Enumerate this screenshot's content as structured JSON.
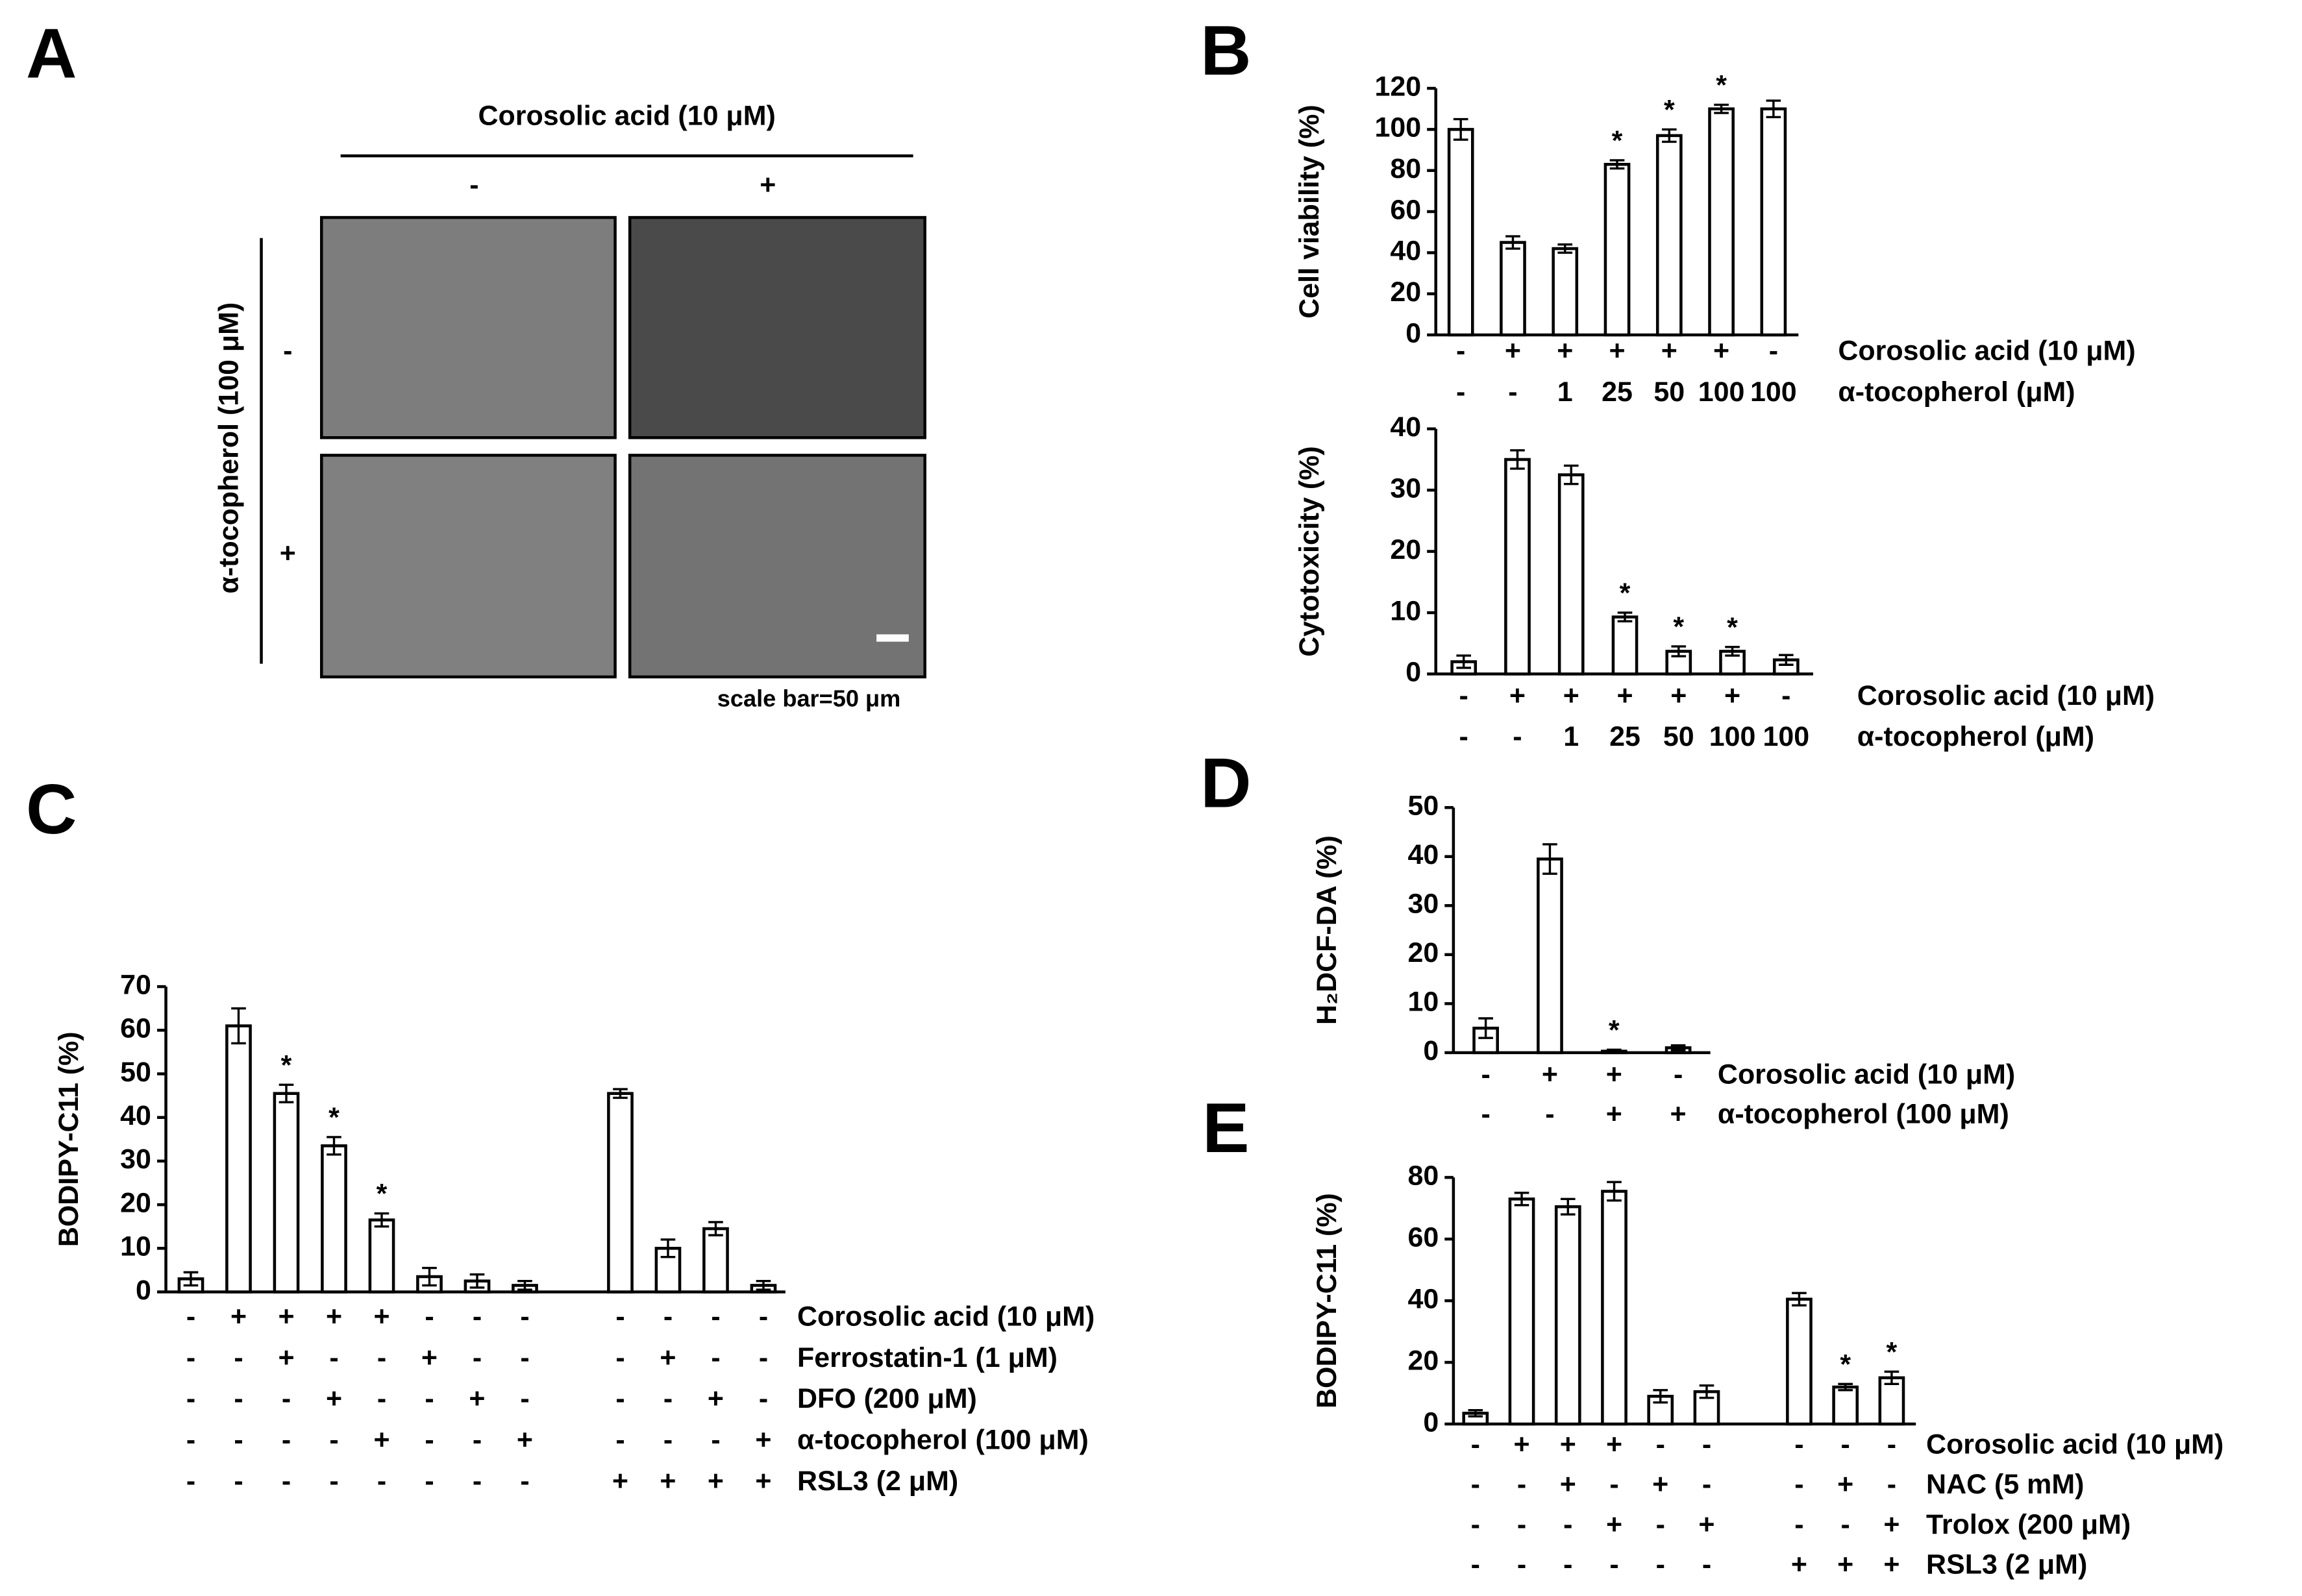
{
  "panel_labels": [
    "A",
    "B",
    "C",
    "D",
    "E"
  ],
  "panel_a": {
    "column_header": "Corosolic acid (10 μM)",
    "column_levels": [
      "-",
      "+"
    ],
    "row_header": "α-tocopherol (100 μM)",
    "row_levels": [
      "-",
      "+"
    ],
    "scale_bar": "scale bar=50 μm"
  },
  "chart_data": [
    {
      "type": "bar",
      "y_label": "Cell viability (%)",
      "ylim": [
        0,
        120
      ],
      "yticks": [
        0,
        20,
        40,
        60,
        80,
        100,
        120
      ],
      "values": [
        100,
        45,
        42,
        83,
        97,
        110,
        110
      ],
      "errors": [
        5,
        3,
        2,
        2,
        3,
        2,
        4
      ],
      "annotations": [
        null,
        null,
        null,
        "*",
        "*",
        "*",
        null
      ],
      "conditions": [
        {
          "label": "Corosolic acid (10 μM)",
          "values": [
            "-",
            "+",
            "+",
            "+",
            "+",
            "+",
            "-"
          ]
        },
        {
          "label": "α-tocopherol (μM)",
          "values": [
            "-",
            "-",
            "1",
            "25",
            "50",
            "100",
            "100"
          ]
        }
      ]
    },
    {
      "type": "bar",
      "y_label": "Cytotoxicity (%)",
      "ylim": [
        0,
        40
      ],
      "yticks": [
        0,
        10,
        20,
        30,
        40
      ],
      "values": [
        2,
        35,
        32.5,
        9.3,
        3.7,
        3.7,
        2.3
      ],
      "errors": [
        1,
        1.5,
        1.5,
        0.7,
        0.8,
        0.7,
        0.8
      ],
      "annotations": [
        null,
        null,
        null,
        "*",
        "*",
        "*",
        null
      ],
      "conditions": [
        {
          "label": "Corosolic acid (10 μM)",
          "values": [
            "-",
            "+",
            "+",
            "+",
            "+",
            "+",
            "-"
          ]
        },
        {
          "label": "α-tocopherol (μM)",
          "values": [
            "-",
            "-",
            "1",
            "25",
            "50",
            "100",
            "100"
          ]
        }
      ]
    },
    {
      "type": "bar",
      "y_label": "BODIPY-C11 (%)",
      "ylim": [
        0,
        70
      ],
      "yticks": [
        0,
        10,
        20,
        30,
        40,
        50,
        60,
        70
      ],
      "values": [
        3,
        61,
        45.5,
        33.5,
        16.5,
        3.5,
        2.5,
        1.5,
        null,
        45.5,
        10,
        14.5,
        1.5
      ],
      "errors": [
        1.5,
        4,
        2,
        2,
        1.5,
        2,
        1.5,
        1,
        null,
        1,
        2,
        1.5,
        1
      ],
      "annotations": [
        null,
        null,
        "*",
        "*",
        "*",
        null,
        null,
        null,
        null,
        null,
        null,
        null,
        null
      ],
      "conditions": [
        {
          "label": "Corosolic acid (10 μM)",
          "values": [
            "-",
            "+",
            "+",
            "+",
            "+",
            "-",
            "-",
            "-",
            null,
            "-",
            "-",
            "-",
            "-"
          ]
        },
        {
          "label": "Ferrostatin-1 (1 μM)",
          "values": [
            "-",
            "-",
            "+",
            "-",
            "-",
            "+",
            "-",
            "-",
            null,
            "-",
            "+",
            "-",
            "-"
          ]
        },
        {
          "label": "DFO (200 μM)",
          "values": [
            "-",
            "-",
            "-",
            "+",
            "-",
            "-",
            "+",
            "-",
            null,
            "-",
            "-",
            "+",
            "-"
          ]
        },
        {
          "label": "α-tocopherol (100 μM)",
          "values": [
            "-",
            "-",
            "-",
            "-",
            "+",
            "-",
            "-",
            "+",
            null,
            "-",
            "-",
            "-",
            "+"
          ]
        },
        {
          "label": "RSL3 (2 μM)",
          "values": [
            "-",
            "-",
            "-",
            "-",
            "-",
            "-",
            "-",
            "-",
            null,
            "+",
            "+",
            "+",
            "+"
          ]
        }
      ]
    },
    {
      "type": "bar",
      "y_label": "H₂DCF-DA (%)",
      "ylim": [
        0,
        50
      ],
      "yticks": [
        0,
        10,
        20,
        30,
        40,
        50
      ],
      "values": [
        5,
        39.5,
        0.3,
        1
      ],
      "errors": [
        2,
        3,
        0.3,
        0.5
      ],
      "annotations": [
        null,
        null,
        "*",
        null
      ],
      "conditions": [
        {
          "label": "Corosolic acid (10 μM)",
          "values": [
            "-",
            "+",
            "+",
            "-"
          ]
        },
        {
          "label": "α-tocopherol (100 μM)",
          "values": [
            "-",
            "-",
            "+",
            "+"
          ]
        }
      ]
    },
    {
      "type": "bar",
      "y_label": "BODIPY-C11 (%)",
      "ylim": [
        0,
        80
      ],
      "yticks": [
        0,
        20,
        40,
        60,
        80
      ],
      "values": [
        3.5,
        73,
        70.5,
        75.5,
        9,
        10.5,
        null,
        40.5,
        12,
        15
      ],
      "errors": [
        1,
        2,
        2.5,
        3,
        2,
        2,
        null,
        2,
        1,
        2
      ],
      "annotations": [
        null,
        null,
        null,
        null,
        null,
        null,
        null,
        null,
        "*",
        "*"
      ],
      "conditions": [
        {
          "label": "Corosolic acid (10 μM)",
          "values": [
            "-",
            "+",
            "+",
            "+",
            "-",
            "-",
            null,
            "-",
            "-",
            "-"
          ]
        },
        {
          "label": "NAC (5 mM)",
          "values": [
            "-",
            "-",
            "+",
            "-",
            "+",
            "-",
            null,
            "-",
            "+",
            "-"
          ]
        },
        {
          "label": "Trolox (200 μM)",
          "values": [
            "-",
            "-",
            "-",
            "+",
            "-",
            "+",
            null,
            "-",
            "-",
            "+"
          ]
        },
        {
          "label": "RSL3 (2 μM)",
          "values": [
            "-",
            "-",
            "-",
            "-",
            "-",
            "-",
            null,
            "+",
            "+",
            "+"
          ]
        }
      ]
    }
  ]
}
